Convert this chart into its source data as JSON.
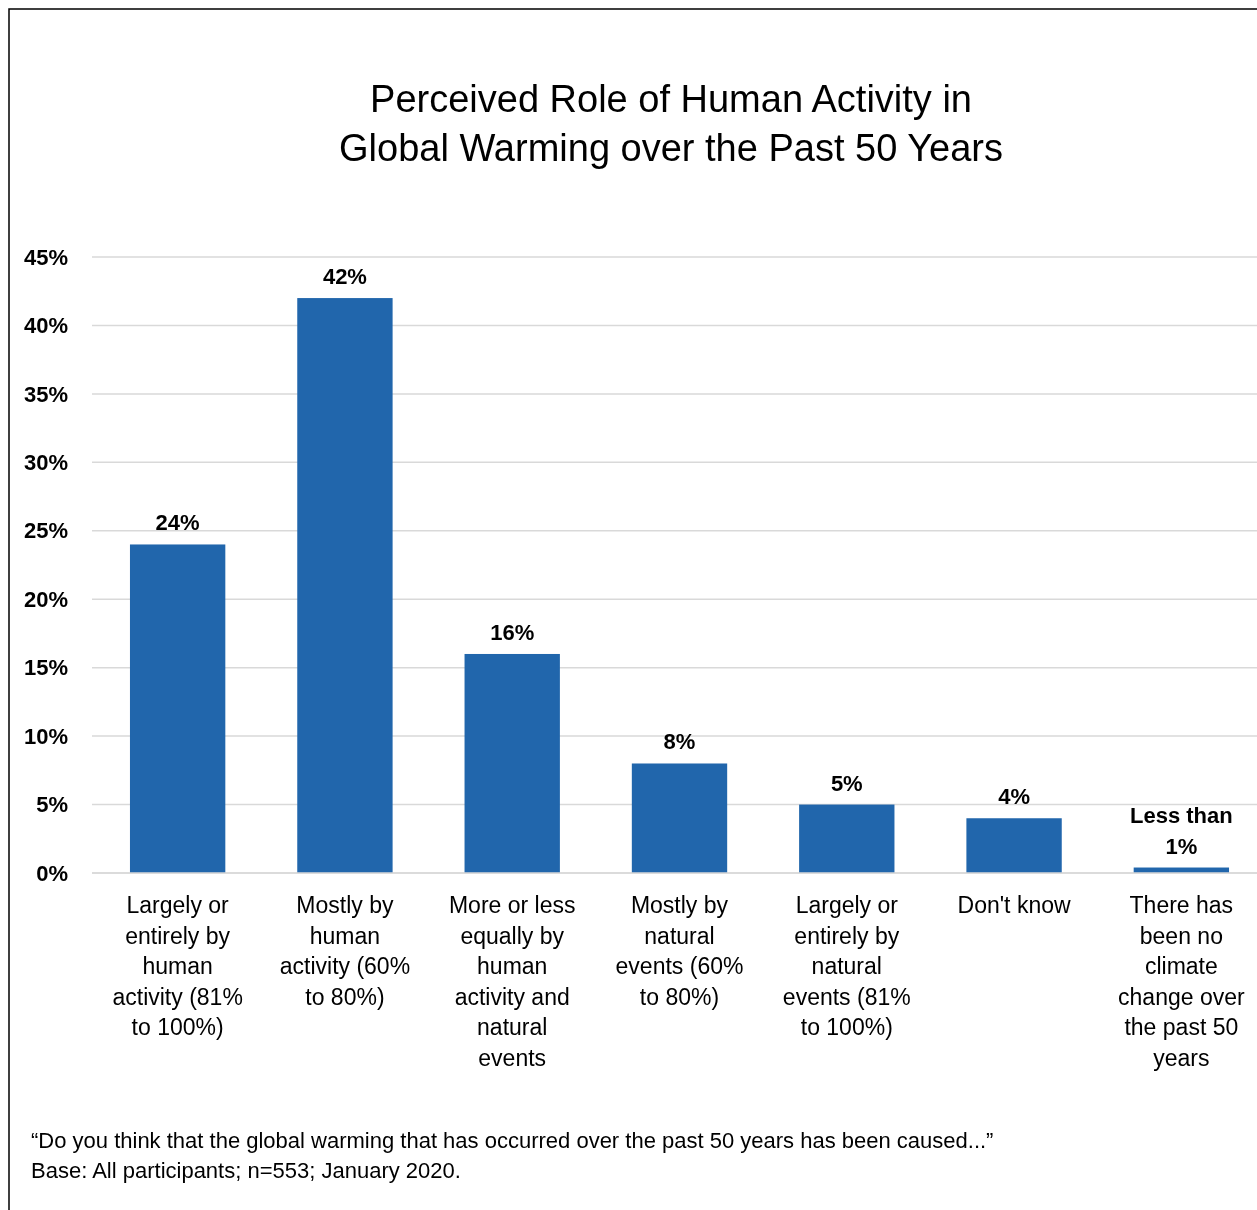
{
  "chart_data": {
    "type": "bar",
    "title": "Perceived Role of Human Activity in Global Warming over the Past 50 Years",
    "categories": [
      "Largely or entirely by human activity (81% to 100%)",
      "Mostly by human activity (60% to 80%)",
      "More or less equally by human activity and natural events",
      "Mostly by natural events (60% to 80%)",
      "Largely or entirely by natural events (81% to 100%)",
      "Don't know",
      "There has been no climate change over the past 50 years"
    ],
    "values": [
      24,
      42,
      16,
      8,
      5,
      4,
      0.4
    ],
    "value_labels": [
      "24%",
      "42%",
      "16%",
      "8%",
      "5%",
      "4%",
      "Less than 1%"
    ],
    "color": "#2166ac",
    "ylim": [
      0,
      45
    ],
    "yticks": [
      {
        "value": 0,
        "label": "0%"
      },
      {
        "value": 5,
        "label": "5%"
      },
      {
        "value": 10,
        "label": "10%"
      },
      {
        "value": 15,
        "label": "15%"
      },
      {
        "value": 20,
        "label": "20%"
      },
      {
        "value": 25,
        "label": "25%"
      },
      {
        "value": 30,
        "label": "30%"
      },
      {
        "value": 35,
        "label": "35%"
      },
      {
        "value": 40,
        "label": "40%"
      },
      {
        "value": 45,
        "label": "45%"
      }
    ],
    "grid": "y",
    "annotations": [
      "“Do you think that the global warming that has occurred over the past 50 years has been caused...”",
      "Base: All participants; n=553; January 2020."
    ]
  }
}
